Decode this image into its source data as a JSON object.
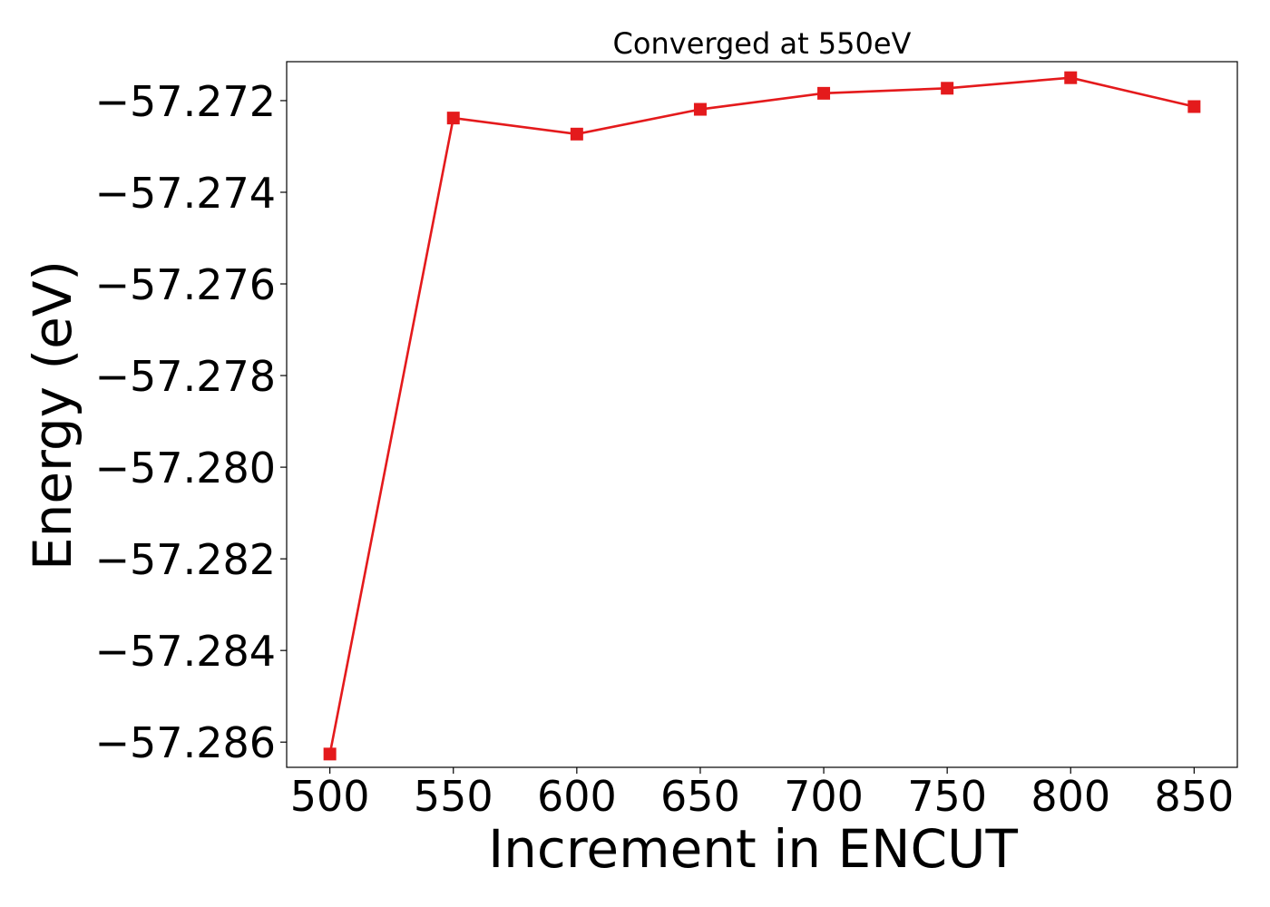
{
  "chart_data": {
    "type": "line",
    "title": "Converged at 550eV",
    "xlabel": "Increment in ENCUT",
    "ylabel": "Energy (eV)",
    "xlim": [
      482.5,
      867.5
    ],
    "ylim": [
      -57.28655,
      -57.27115
    ],
    "x_ticks": [
      500,
      550,
      600,
      650,
      700,
      750,
      800,
      850
    ],
    "y_ticks": [
      -57.272,
      -57.274,
      -57.276,
      -57.278,
      -57.28,
      -57.282,
      -57.284,
      -57.286
    ],
    "y_tick_labels": [
      "−57.272",
      "−57.274",
      "−57.276",
      "−57.278",
      "−57.280",
      "−57.282",
      "−57.284",
      "−57.286"
    ],
    "grid": false,
    "marker": "square",
    "series": [
      {
        "color": "#e41a1c",
        "x": [
          500,
          550,
          600,
          650,
          700,
          750,
          800,
          850
        ],
        "y": [
          -57.28626,
          -57.27238,
          -57.27273,
          -57.27219,
          -57.27184,
          -57.27173,
          -57.2715,
          -57.27213
        ]
      }
    ]
  }
}
